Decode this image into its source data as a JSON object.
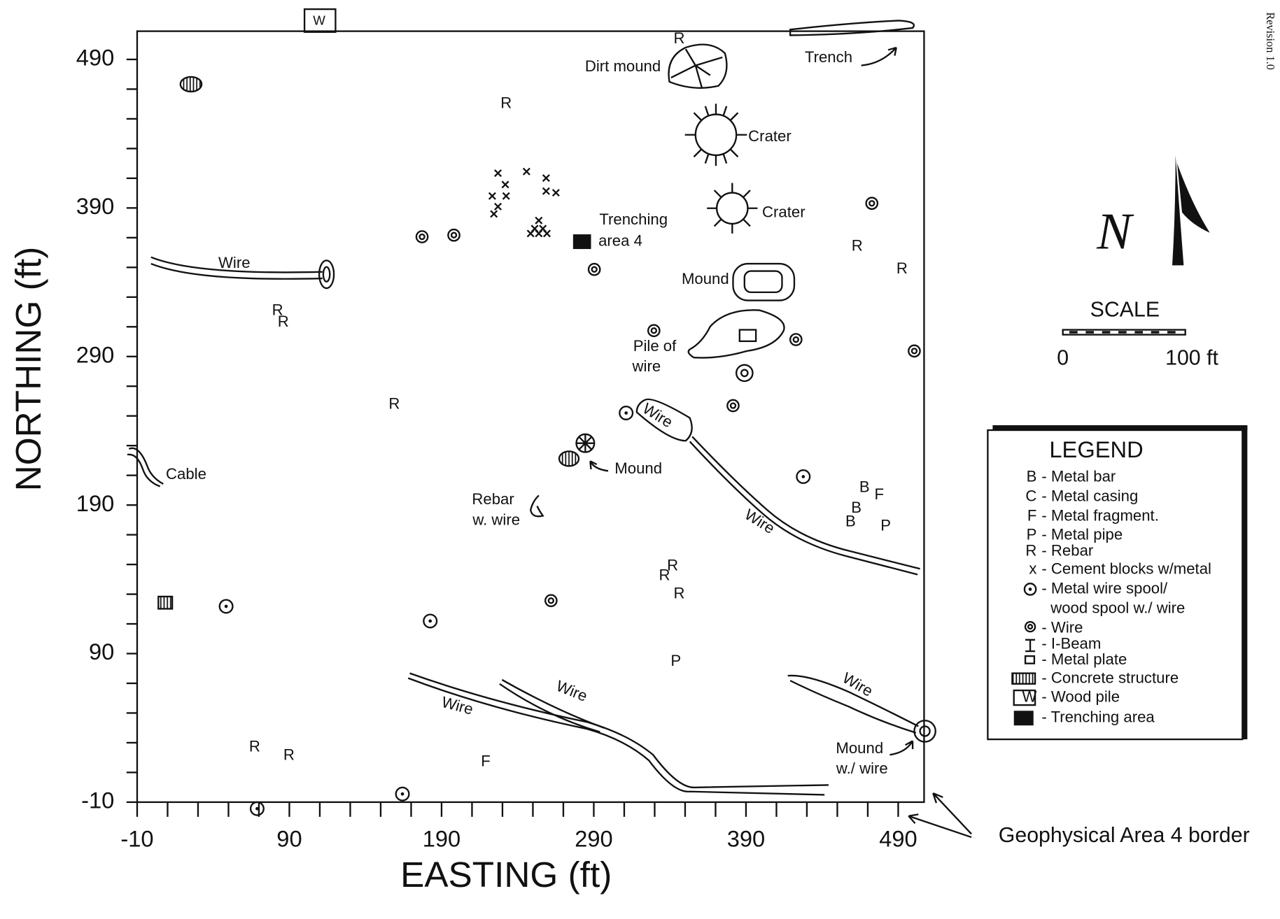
{
  "header": {
    "revision": "Revision 1.0",
    "wood_pile_marker": "W",
    "north": "N"
  },
  "axes": {
    "x": {
      "label": "EASTING (ft)",
      "lim": [
        -10,
        507
      ],
      "ticks": [
        -10,
        90,
        190,
        290,
        390,
        490
      ],
      "minor": [
        -10,
        10,
        30,
        50,
        70,
        90,
        110,
        130,
        150,
        170,
        190,
        210,
        230,
        250,
        270,
        290,
        310,
        330,
        350,
        370,
        390,
        410,
        430,
        450,
        470,
        490
      ]
    },
    "y": {
      "label": "NORTHING (ft)",
      "lim": [
        -10,
        509
      ],
      "ticks": [
        -10,
        90,
        190,
        290,
        390,
        490
      ],
      "minor": [
        -10,
        10,
        30,
        50,
        70,
        90,
        110,
        130,
        150,
        170,
        190,
        210,
        230,
        250,
        270,
        290,
        310,
        330,
        350,
        370,
        390,
        410,
        430,
        450,
        470,
        490
      ]
    }
  },
  "annotations": [
    "Dirt mound",
    "Trench",
    "Crater",
    "Crater",
    "Trenching",
    "area 4",
    "Wire",
    "Mound",
    "Pile of",
    "wire",
    "Wire",
    "Cable",
    "Mound",
    "Rebar",
    "w. wire",
    "Wire",
    "Wire",
    "Wire",
    "Wire",
    "Mound",
    "w./ wire",
    "Geophysical Area 4 border"
  ],
  "symbols": [
    "R",
    "R",
    "R",
    "R",
    "R",
    "R",
    "R",
    "R",
    "R",
    "R",
    "R",
    "R",
    "P",
    "P",
    "F",
    "F",
    "B",
    "B",
    "B"
  ],
  "scale": {
    "title": "SCALE",
    "start": "0",
    "end": "100 ft"
  },
  "legend": {
    "title": "LEGEND",
    "items": [
      {
        "key": "B",
        "text": "- Metal bar"
      },
      {
        "key": "C",
        "text": "- Metal casing"
      },
      {
        "key": "F",
        "text": "- Metal fragment."
      },
      {
        "key": "P",
        "text": "- Metal pipe"
      },
      {
        "key": "R",
        "text": "- Rebar"
      },
      {
        "key": "x",
        "text": "- Cement blocks w/metal"
      },
      {
        "text": "- Metal wire spool/",
        "continued": "wood spool w./ wire"
      },
      {
        "text": "- Wire"
      },
      {
        "text": "- I-Beam"
      },
      {
        "text": "- Metal plate"
      },
      {
        "text": "- Concrete structure"
      },
      {
        "key": "W",
        "text": "- Wood pile"
      },
      {
        "text": "- Trenching area"
      }
    ]
  }
}
